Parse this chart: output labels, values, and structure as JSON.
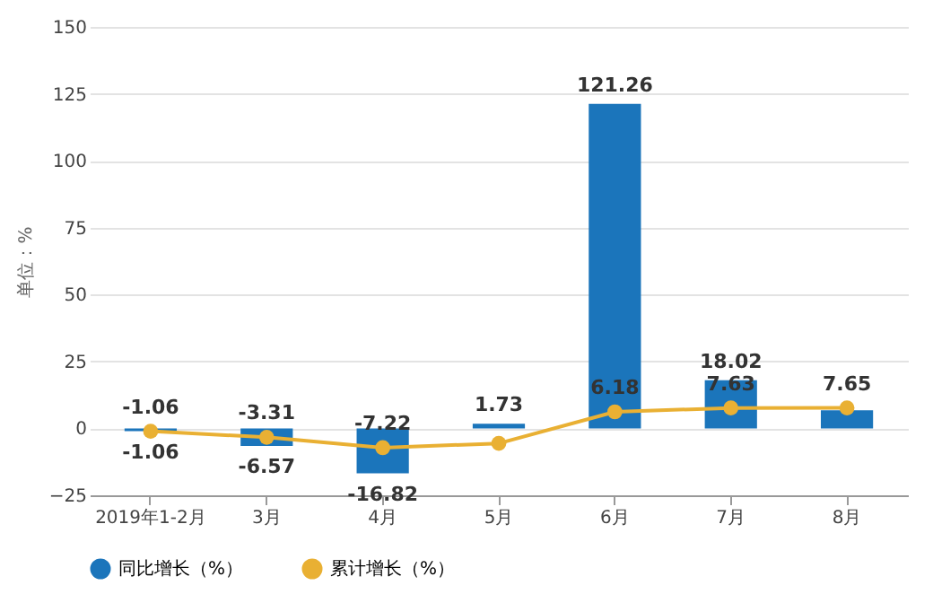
{
  "chart_data": {
    "type": "bar",
    "ylabel": "单位：%",
    "categories": [
      "2019年1-2月",
      "3月",
      "4月",
      "5月",
      "6月",
      "7月",
      "8月"
    ],
    "series": [
      {
        "name": "同比增长（%）",
        "color": "#1b75bb",
        "values": [
          -1.06,
          -6.57,
          -16.82,
          1.73,
          121.26,
          18.02,
          6.8
        ],
        "value_labels": [
          "-1.06",
          "-6.57",
          "-16.82",
          "1.73",
          "121.26",
          "18.02",
          null
        ]
      },
      {
        "name": "累计增长（%）",
        "type": "line",
        "color": "#e9b033",
        "values": [
          -1.06,
          -3.31,
          -7.22,
          -5.6,
          6.18,
          7.63,
          7.65
        ],
        "value_labels": [
          "-1.06",
          "-3.31",
          "-7.22",
          null,
          "6.18",
          "7.63",
          "7.65"
        ]
      }
    ],
    "ylim": [
      -25,
      150
    ],
    "yticks": [
      -25,
      0,
      25,
      50,
      75,
      100,
      125,
      150
    ],
    "grid": "y",
    "legend": "bottom",
    "marker": "circle"
  }
}
